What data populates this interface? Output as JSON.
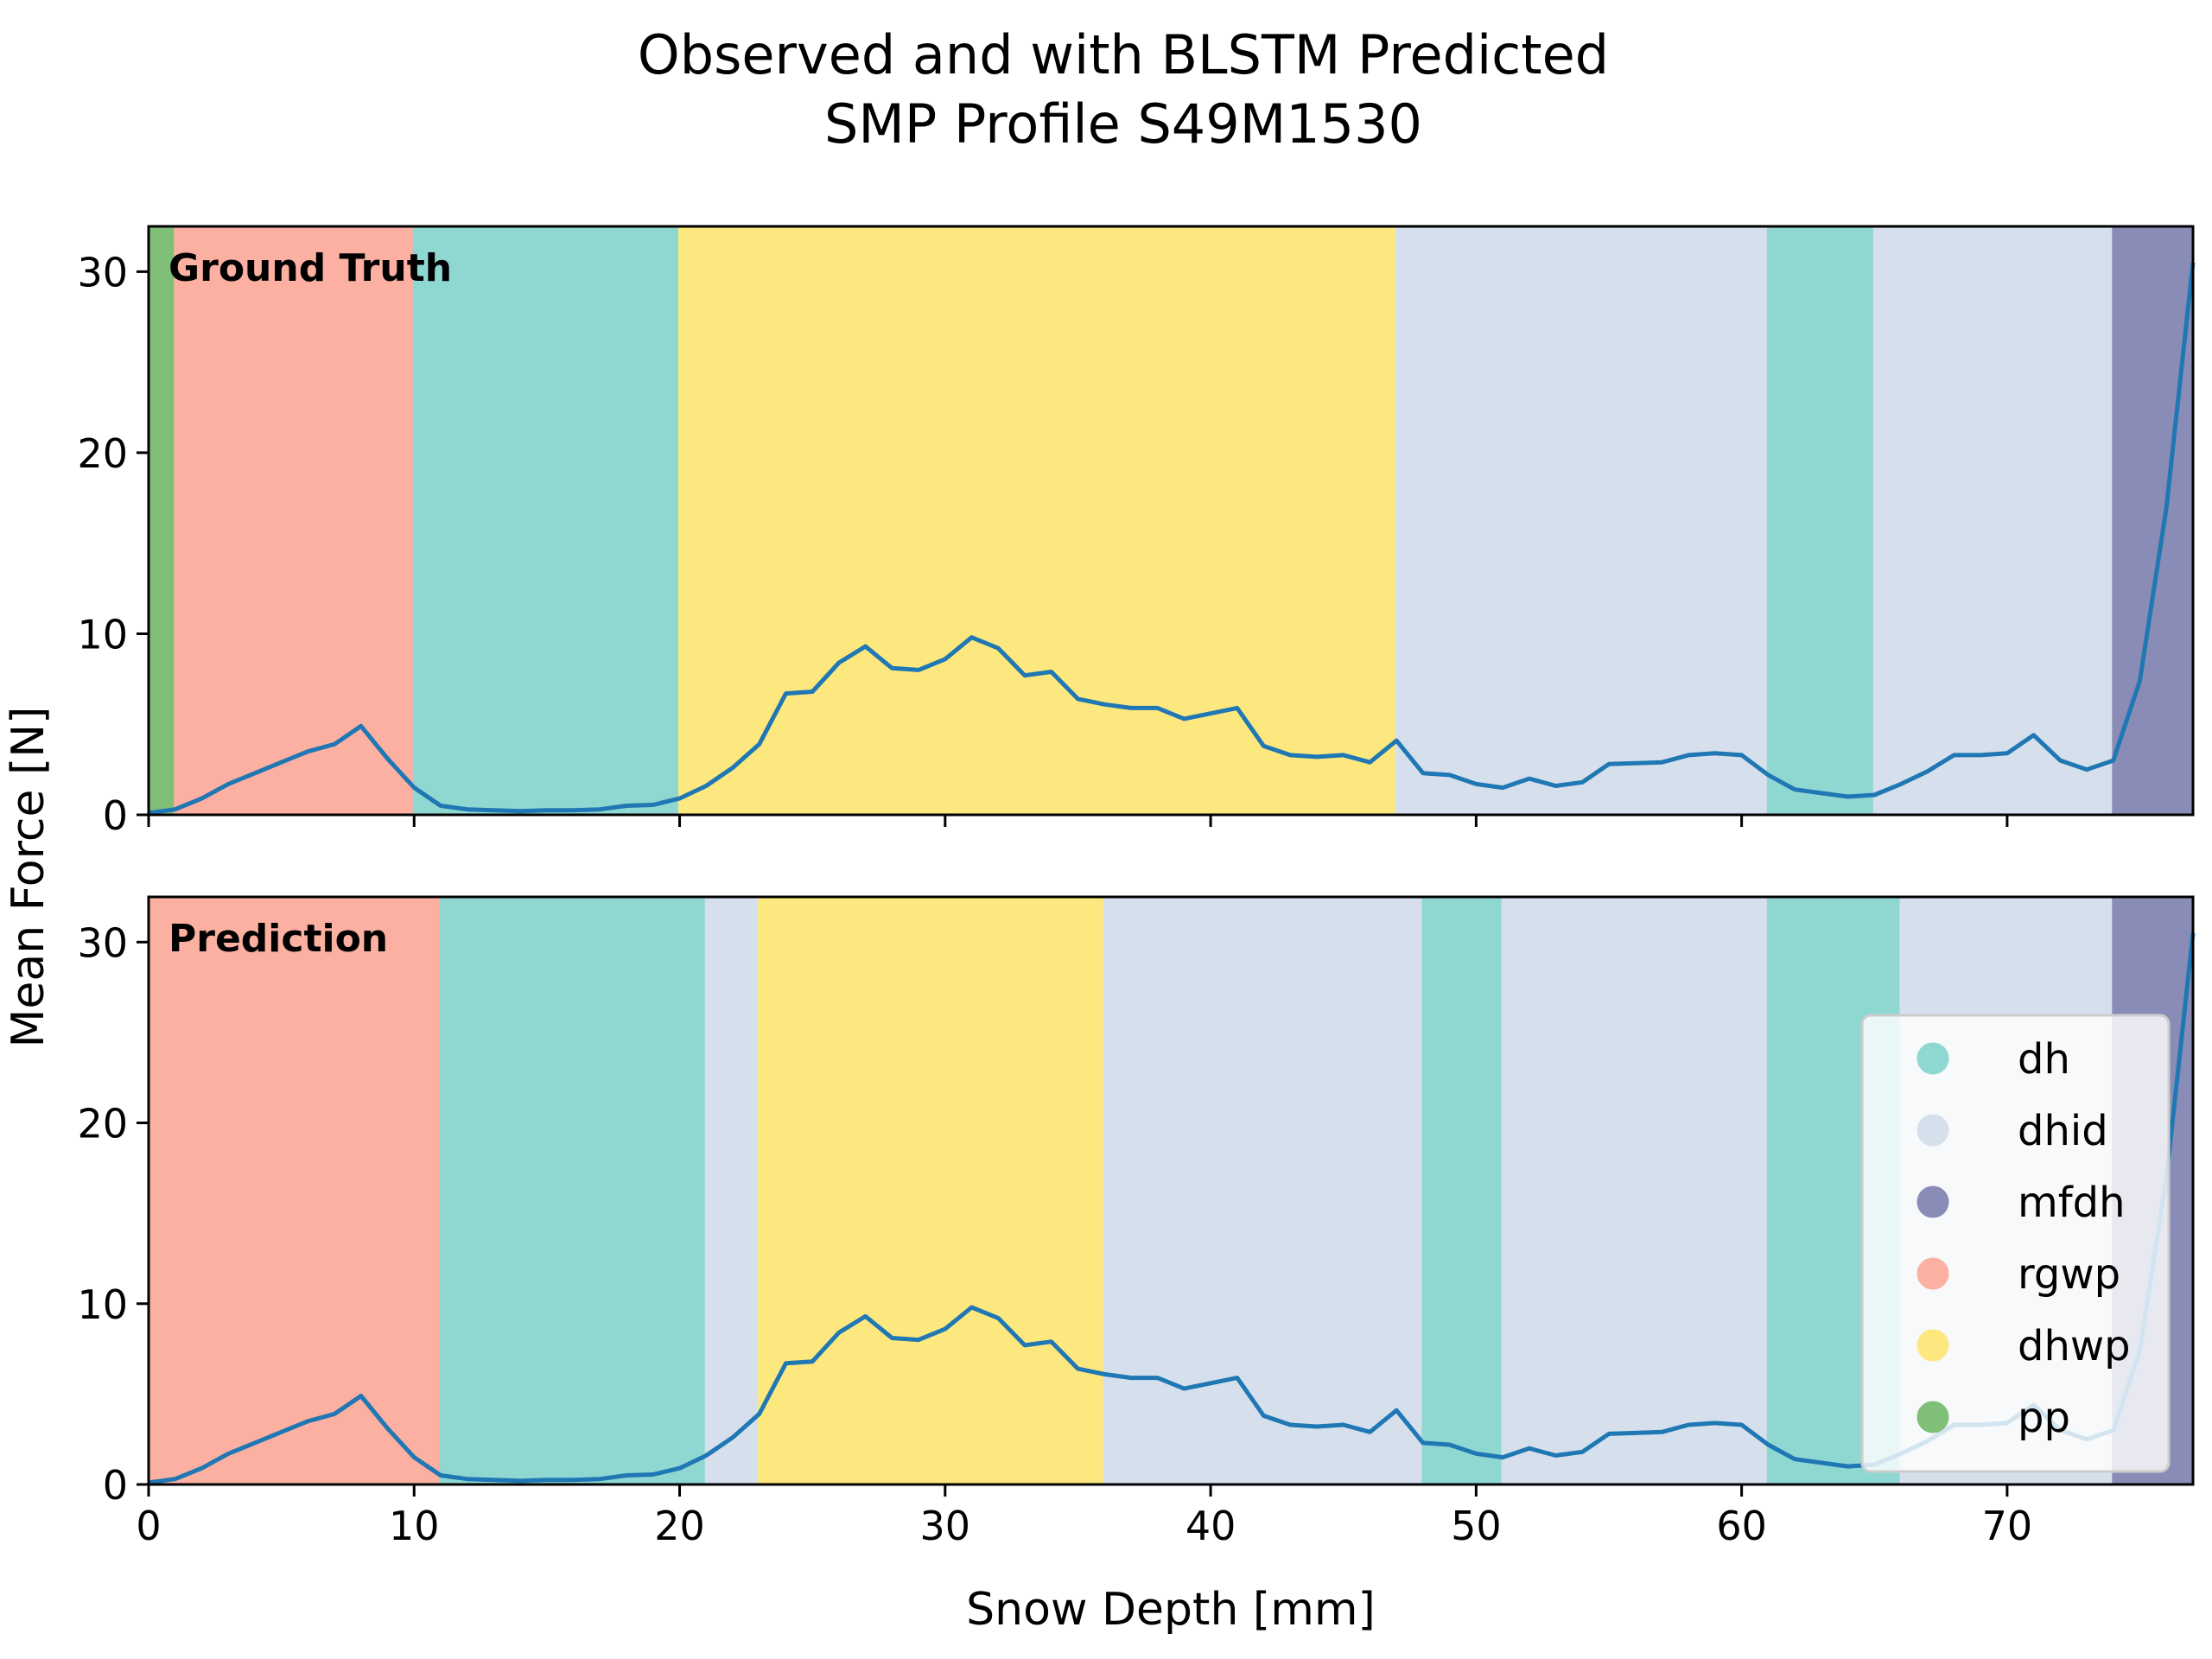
{
  "chart_data": {
    "type": "line",
    "title": "Observed and with BLSTM Predicted\nSMP Profile S49M1530",
    "xlabel": "Snow Depth [mm]",
    "ylabel": "Mean Force [N]",
    "xlim": [
      0,
      77
    ],
    "ylim": [
      0,
      32.5
    ],
    "xticks": [
      0,
      10,
      20,
      30,
      40,
      50,
      60,
      70
    ],
    "yticks": [
      0,
      10,
      20,
      30
    ],
    "grid": false,
    "legend_position": "lower-right",
    "classes": [
      {
        "name": "dh",
        "color": "#8fd8d2"
      },
      {
        "name": "dhid",
        "color": "#d6e0ec"
      },
      {
        "name": "mfdh",
        "color": "#8a8cb8"
      },
      {
        "name": "rgwp",
        "color": "#fcb0a1"
      },
      {
        "name": "dhwp",
        "color": "#fde87f"
      },
      {
        "name": "pp",
        "color": "#80bf78"
      }
    ],
    "legend_entries": [
      "dh",
      "dhid",
      "mfdh",
      "rgwp",
      "dhwp",
      "pp"
    ],
    "line_color": "#1f77b4",
    "series": [
      {
        "x": [
          0,
          1,
          2,
          3,
          4,
          5,
          6,
          7,
          8,
          9,
          10,
          11,
          12,
          13,
          14,
          15,
          16,
          17,
          18,
          19,
          20,
          21,
          22,
          23,
          24,
          25,
          26,
          27,
          28,
          29,
          30,
          31,
          32,
          33,
          34,
          35,
          36,
          37,
          38,
          39,
          40,
          41,
          42,
          43,
          44,
          45,
          46,
          47,
          48,
          49,
          50,
          51,
          52,
          53,
          54,
          55,
          56,
          57,
          58,
          59,
          60,
          61,
          62,
          63,
          64,
          65,
          66,
          67,
          68,
          69,
          70,
          71,
          72,
          73,
          74,
          75,
          76,
          77
        ],
        "values": [
          0.1,
          0.3,
          0.9,
          1.7,
          2.3,
          2.9,
          3.5,
          3.9,
          4.9,
          3.1,
          1.5,
          0.5,
          0.3,
          0.25,
          0.2,
          0.25,
          0.25,
          0.3,
          0.5,
          0.55,
          0.9,
          1.6,
          2.6,
          3.9,
          6.7,
          6.8,
          8.4,
          9.3,
          8.1,
          8.0,
          8.6,
          9.8,
          9.2,
          7.7,
          7.9,
          6.4,
          6.1,
          5.9,
          5.9,
          5.3,
          5.6,
          5.9,
          3.8,
          3.3,
          3.2,
          3.3,
          2.9,
          4.1,
          2.3,
          2.2,
          1.7,
          1.5,
          2.0,
          1.6,
          1.8,
          2.8,
          2.85,
          2.9,
          3.3,
          3.4,
          3.3,
          2.2,
          1.4,
          1.2,
          1.0,
          1.1,
          1.7,
          2.4,
          3.3,
          3.3,
          3.4,
          4.4,
          3.0,
          2.5,
          3.0,
          7.4,
          17.0,
          30.5
        ]
      }
    ],
    "panels": [
      {
        "label": "Ground Truth",
        "segments": [
          {
            "class": "pp",
            "start": 0,
            "end": 1
          },
          {
            "class": "rgwp",
            "start": 1,
            "end": 10
          },
          {
            "class": "dh",
            "start": 10,
            "end": 20
          },
          {
            "class": "dhwp",
            "start": 20,
            "end": 47
          },
          {
            "class": "dhid",
            "start": 47,
            "end": 61
          },
          {
            "class": "dh",
            "start": 61,
            "end": 65
          },
          {
            "class": "dhid",
            "start": 65,
            "end": 74
          },
          {
            "class": "mfdh",
            "start": 74,
            "end": 77
          }
        ]
      },
      {
        "label": "Prediction",
        "segments": [
          {
            "class": "rgwp",
            "start": 0,
            "end": 11
          },
          {
            "class": "dh",
            "start": 11,
            "end": 21
          },
          {
            "class": "dhid",
            "start": 21,
            "end": 23
          },
          {
            "class": "dhwp",
            "start": 23,
            "end": 36
          },
          {
            "class": "dhid",
            "start": 36,
            "end": 48
          },
          {
            "class": "dh",
            "start": 48,
            "end": 51
          },
          {
            "class": "dhid",
            "start": 51,
            "end": 61
          },
          {
            "class": "dh",
            "start": 61,
            "end": 66
          },
          {
            "class": "dhid",
            "start": 66,
            "end": 74
          },
          {
            "class": "mfdh",
            "start": 74,
            "end": 77
          }
        ]
      }
    ]
  }
}
